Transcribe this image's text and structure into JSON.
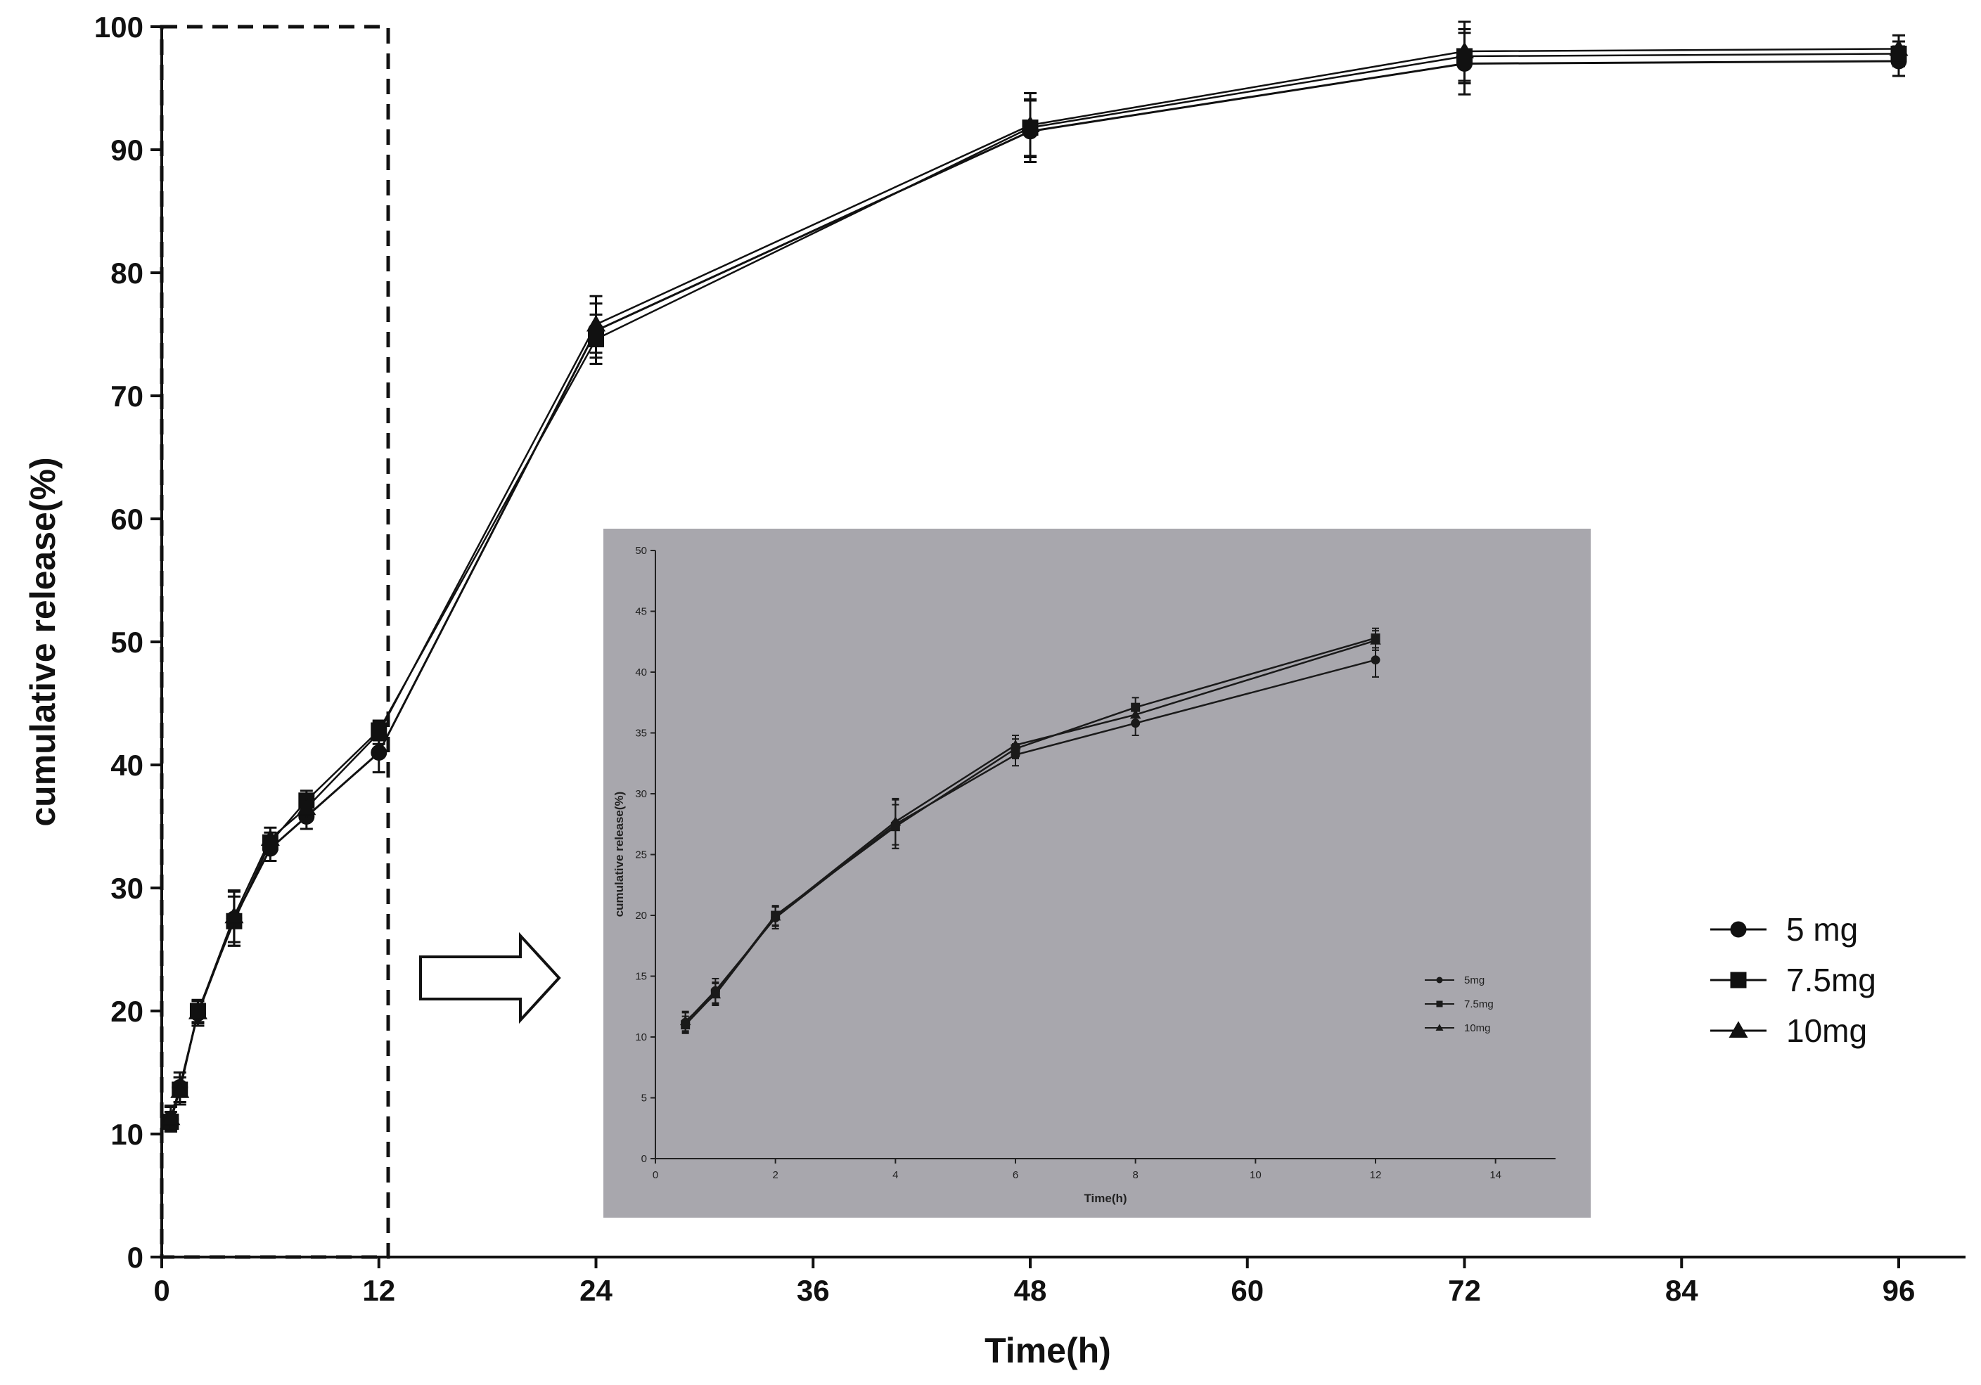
{
  "chart_data": [
    {
      "type": "line",
      "xlabel": "Time(h)",
      "ylabel": "cumulative release(%)",
      "xlim": [
        0,
        96
      ],
      "ylim": [
        0,
        100
      ],
      "xticks": [
        0,
        12,
        24,
        36,
        48,
        60,
        72,
        84,
        96
      ],
      "yticks": [
        0,
        10,
        20,
        30,
        40,
        50,
        60,
        70,
        80,
        90,
        100
      ],
      "grid": false,
      "legend_position": "right",
      "x": [
        0.5,
        1,
        2,
        4,
        6,
        8,
        12,
        24,
        48,
        72,
        96
      ],
      "series": [
        {
          "name": "5 mg",
          "marker": "circle",
          "color": "#111111",
          "values": [
            11.2,
            13.8,
            19.8,
            27.5,
            33.2,
            35.8,
            41.0,
            75.3,
            91.5,
            97.0,
            97.2
          ],
          "errors": [
            1.0,
            1.2,
            1.0,
            2.2,
            1.0,
            1.0,
            1.6,
            2.2,
            2.5,
            2.5,
            1.2
          ]
        },
        {
          "name": "7.5mg",
          "marker": "square",
          "color": "#111111",
          "values": [
            11.0,
            13.6,
            20.0,
            27.3,
            33.7,
            37.1,
            42.8,
            74.6,
            91.8,
            97.6,
            97.8
          ],
          "errors": [
            0.8,
            1.0,
            0.9,
            2.0,
            0.8,
            0.8,
            0.8,
            2.0,
            2.3,
            2.2,
            1.0
          ]
        },
        {
          "name": "10mg",
          "marker": "triangle",
          "color": "#111111",
          "values": [
            11.3,
            13.5,
            19.9,
            27.7,
            34.0,
            36.5,
            42.6,
            75.8,
            92.0,
            98.0,
            98.2
          ],
          "errors": [
            1.0,
            1.1,
            0.9,
            2.1,
            0.9,
            0.9,
            0.9,
            2.3,
            2.6,
            2.4,
            1.1
          ]
        }
      ],
      "annotations": [
        "dashed box spans 0–12 h",
        "arrow points to zoomed inset"
      ]
    },
    {
      "type": "line",
      "xlabel": "Time(h)",
      "ylabel": "cumulative release(%)",
      "xlim": [
        0,
        15
      ],
      "ylim": [
        0,
        50
      ],
      "xticks": [
        0,
        2,
        4,
        6,
        8,
        10,
        12,
        14
      ],
      "yticks": [
        0,
        5,
        10,
        15,
        20,
        25,
        30,
        35,
        40,
        45,
        50
      ],
      "grid": false,
      "legend_position": "right",
      "background_color": "#a8a7ad",
      "x": [
        0.5,
        1,
        2,
        4,
        6,
        8,
        12
      ],
      "series": [
        {
          "name": "5mg",
          "marker": "circle",
          "values": [
            11.2,
            13.8,
            19.8,
            27.5,
            33.2,
            35.8,
            41.0
          ],
          "errors": [
            0.8,
            1.0,
            0.9,
            2.0,
            0.9,
            1.0,
            1.4
          ]
        },
        {
          "name": "7.5mg",
          "marker": "square",
          "values": [
            11.0,
            13.6,
            20.0,
            27.3,
            33.7,
            37.1,
            42.8
          ],
          "errors": [
            0.7,
            0.9,
            0.8,
            1.8,
            0.8,
            0.8,
            0.8
          ]
        },
        {
          "name": "10mg",
          "marker": "triangle",
          "values": [
            11.3,
            13.5,
            19.9,
            27.7,
            34.0,
            36.5,
            42.6
          ],
          "errors": [
            0.8,
            0.9,
            0.8,
            1.9,
            0.8,
            0.8,
            0.8
          ]
        }
      ]
    }
  ]
}
